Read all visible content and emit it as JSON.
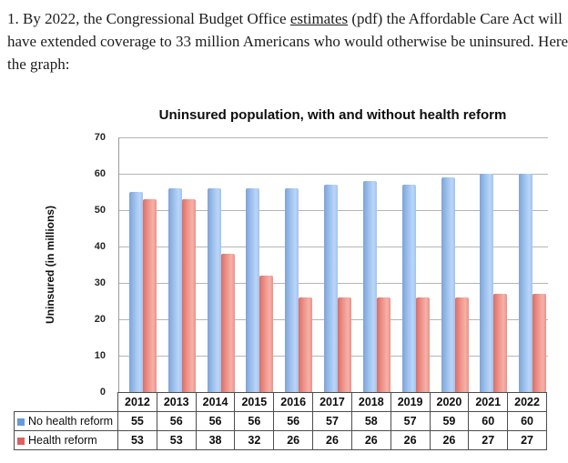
{
  "intro": {
    "lines": [
      {
        "pre": "1. By 2022, the Congressional Budget Office ",
        "link": "estimates",
        "post": " (pdf) the Affordable Care Act will"
      },
      {
        "pre": "have extended coverage to 33 million Americans who would otherwise be uninsured. Here’s",
        "link": "",
        "post": ""
      },
      {
        "pre": "the graph:",
        "link": "",
        "post": ""
      }
    ]
  },
  "chart_data": {
    "type": "bar",
    "title": "Uninsured population, with and without health reform",
    "xlabel": "",
    "ylabel": "Uninsured (in millions)",
    "categories": [
      "2012",
      "2013",
      "2014",
      "2015",
      "2016",
      "2017",
      "2018",
      "2019",
      "2020",
      "2021",
      "2022"
    ],
    "series": [
      {
        "name": "No health reform",
        "color": "#6699db",
        "values": [
          55,
          56,
          56,
          56,
          56,
          57,
          58,
          57,
          59,
          60,
          60
        ]
      },
      {
        "name": "Health reform",
        "color": "#dd5f5f",
        "values": [
          53,
          53,
          38,
          32,
          26,
          26,
          26,
          26,
          26,
          27,
          27
        ]
      }
    ],
    "ylim": [
      0,
      70
    ],
    "yticks": [
      0,
      10,
      20,
      30,
      40,
      50,
      60,
      70
    ],
    "grid": true,
    "legend_position": "table-left",
    "data_table_shown": true
  },
  "colors": {
    "gridline": "#b5b5b5",
    "axis": "#9b9b9b",
    "table_border": "#4d4d4d",
    "text": "#1c1c1c"
  }
}
